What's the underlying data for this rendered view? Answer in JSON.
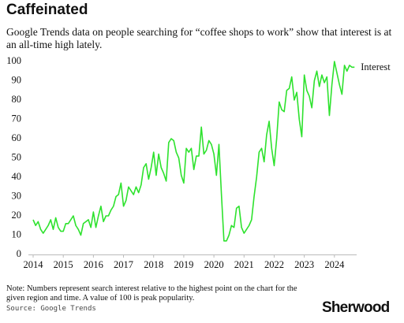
{
  "chart_data": {
    "type": "line",
    "title": "Caffeinated",
    "subtitle": "Google Trends data on people searching for “coffee shops to work” show that interest is at an all-time high lately.",
    "note": "Note: Numbers represent search interest relative to the highest point on the chart for the given region and time. A value of 100 is peak popularity.",
    "source": "Source: Google Trends",
    "brand": "Sherwood",
    "xlim": [
      2014,
      2025
    ],
    "xticks": [
      2014,
      2015,
      2016,
      2017,
      2018,
      2019,
      2020,
      2021,
      2022,
      2023,
      2024
    ],
    "ylim": [
      0,
      100
    ],
    "yticks": [
      0,
      10,
      20,
      30,
      40,
      50,
      60,
      70,
      80,
      90,
      100
    ],
    "grid": false,
    "series": [
      {
        "name": "Interest",
        "color": "#2ee22e",
        "x": [
          2014,
          2014.0833,
          2014.1667,
          2014.25,
          2014.3333,
          2014.4167,
          2014.5,
          2014.5833,
          2014.6667,
          2014.75,
          2014.8333,
          2014.9167,
          2015,
          2015.0833,
          2015.1667,
          2015.25,
          2015.3333,
          2015.4167,
          2015.5,
          2015.5833,
          2015.6667,
          2015.75,
          2015.8333,
          2015.9167,
          2016,
          2016.0833,
          2016.1667,
          2016.25,
          2016.3333,
          2016.4167,
          2016.5,
          2016.5833,
          2016.6667,
          2016.75,
          2016.8333,
          2016.9167,
          2017,
          2017.0833,
          2017.1667,
          2017.25,
          2017.3333,
          2017.4167,
          2017.5,
          2017.5833,
          2017.6667,
          2017.75,
          2017.8333,
          2017.9167,
          2018,
          2018.0833,
          2018.1667,
          2018.25,
          2018.3333,
          2018.4167,
          2018.5,
          2018.5833,
          2018.6667,
          2018.75,
          2018.8333,
          2018.9167,
          2019,
          2019.0833,
          2019.1667,
          2019.25,
          2019.3333,
          2019.4167,
          2019.5,
          2019.5833,
          2019.6667,
          2019.75,
          2019.8333,
          2019.9167,
          2020,
          2020.0833,
          2020.1667,
          2020.25,
          2020.3333,
          2020.4167,
          2020.5,
          2020.5833,
          2020.6667,
          2020.75,
          2020.8333,
          2020.9167,
          2021,
          2021.0833,
          2021.1667,
          2021.25,
          2021.3333,
          2021.4167,
          2021.5,
          2021.5833,
          2021.6667,
          2021.75,
          2021.8333,
          2021.9167,
          2022,
          2022.0833,
          2022.1667,
          2022.25,
          2022.3333,
          2022.4167,
          2022.5,
          2022.5833,
          2022.6667,
          2022.75,
          2022.8333,
          2022.9167,
          2023,
          2023.0833,
          2023.1667,
          2023.25,
          2023.3333,
          2023.4167,
          2023.5,
          2023.5833,
          2023.6667,
          2023.75,
          2023.8333,
          2023.9167,
          2024,
          2024.0833,
          2024.1667,
          2024.25,
          2024.3333,
          2024.4167,
          2024.5,
          2024.5833,
          2024.6667
        ],
        "values": [
          18,
          15,
          17,
          13,
          11,
          13,
          15,
          18,
          13,
          19,
          14,
          12,
          12,
          16,
          16,
          18,
          20,
          15,
          13,
          10,
          16,
          17,
          18,
          14,
          22,
          14,
          20,
          25,
          17,
          20,
          20,
          23,
          25,
          30,
          31,
          37,
          25,
          28,
          35,
          33,
          31,
          35,
          32,
          36,
          45,
          47,
          39,
          45,
          53,
          41,
          52,
          45,
          42,
          38,
          58,
          60,
          59,
          53,
          50,
          41,
          37,
          55,
          53,
          55,
          44,
          51,
          51,
          66,
          52,
          54,
          59,
          57,
          52,
          41,
          57,
          31,
          7,
          7,
          10,
          15,
          14,
          24,
          25,
          14,
          11,
          13,
          15,
          18,
          30,
          40,
          53,
          55,
          48,
          62,
          69,
          55,
          46,
          60,
          79,
          75,
          74,
          85,
          86,
          92,
          80,
          84,
          70,
          61,
          93,
          85,
          82,
          76,
          90,
          95,
          87,
          93,
          89,
          92,
          72,
          88,
          100,
          94,
          88,
          83,
          98,
          95,
          98,
          97,
          97
        ]
      }
    ]
  }
}
